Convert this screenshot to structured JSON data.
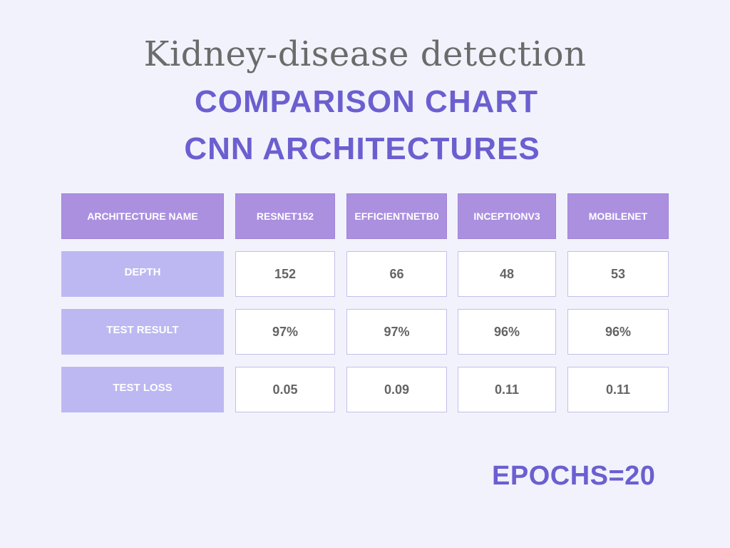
{
  "title": "Kidney-disease detection",
  "subtitle_line1": "COMPARISON CHART",
  "subtitle_line2": "CNN ARCHITECTURES",
  "footer_note": "EPOCHS=20",
  "colors": {
    "background": "#f2f2fc",
    "accent": "#6b5fd0",
    "header_fill": "#ab90e0",
    "row_label_fill": "#bdb8f2",
    "value_fill": "#ffffff",
    "title_gray": "#6b6b6b"
  },
  "chart_data": {
    "type": "table",
    "corner_header": "ARCHITECTURE NAME",
    "columns": [
      "RESNET152",
      "EFFICIENTNETB0",
      "INCEPTIONV3",
      "MOBILENET"
    ],
    "rows": [
      {
        "label": "DEPTH",
        "values": [
          "152",
          "66",
          "48",
          "53"
        ]
      },
      {
        "label": "TEST RESULT",
        "values": [
          "97%",
          "97%",
          "96%",
          "96%"
        ]
      },
      {
        "label": "TEST LOSS",
        "values": [
          "0.05",
          "0.09",
          "0.11",
          "0.11"
        ]
      }
    ]
  }
}
